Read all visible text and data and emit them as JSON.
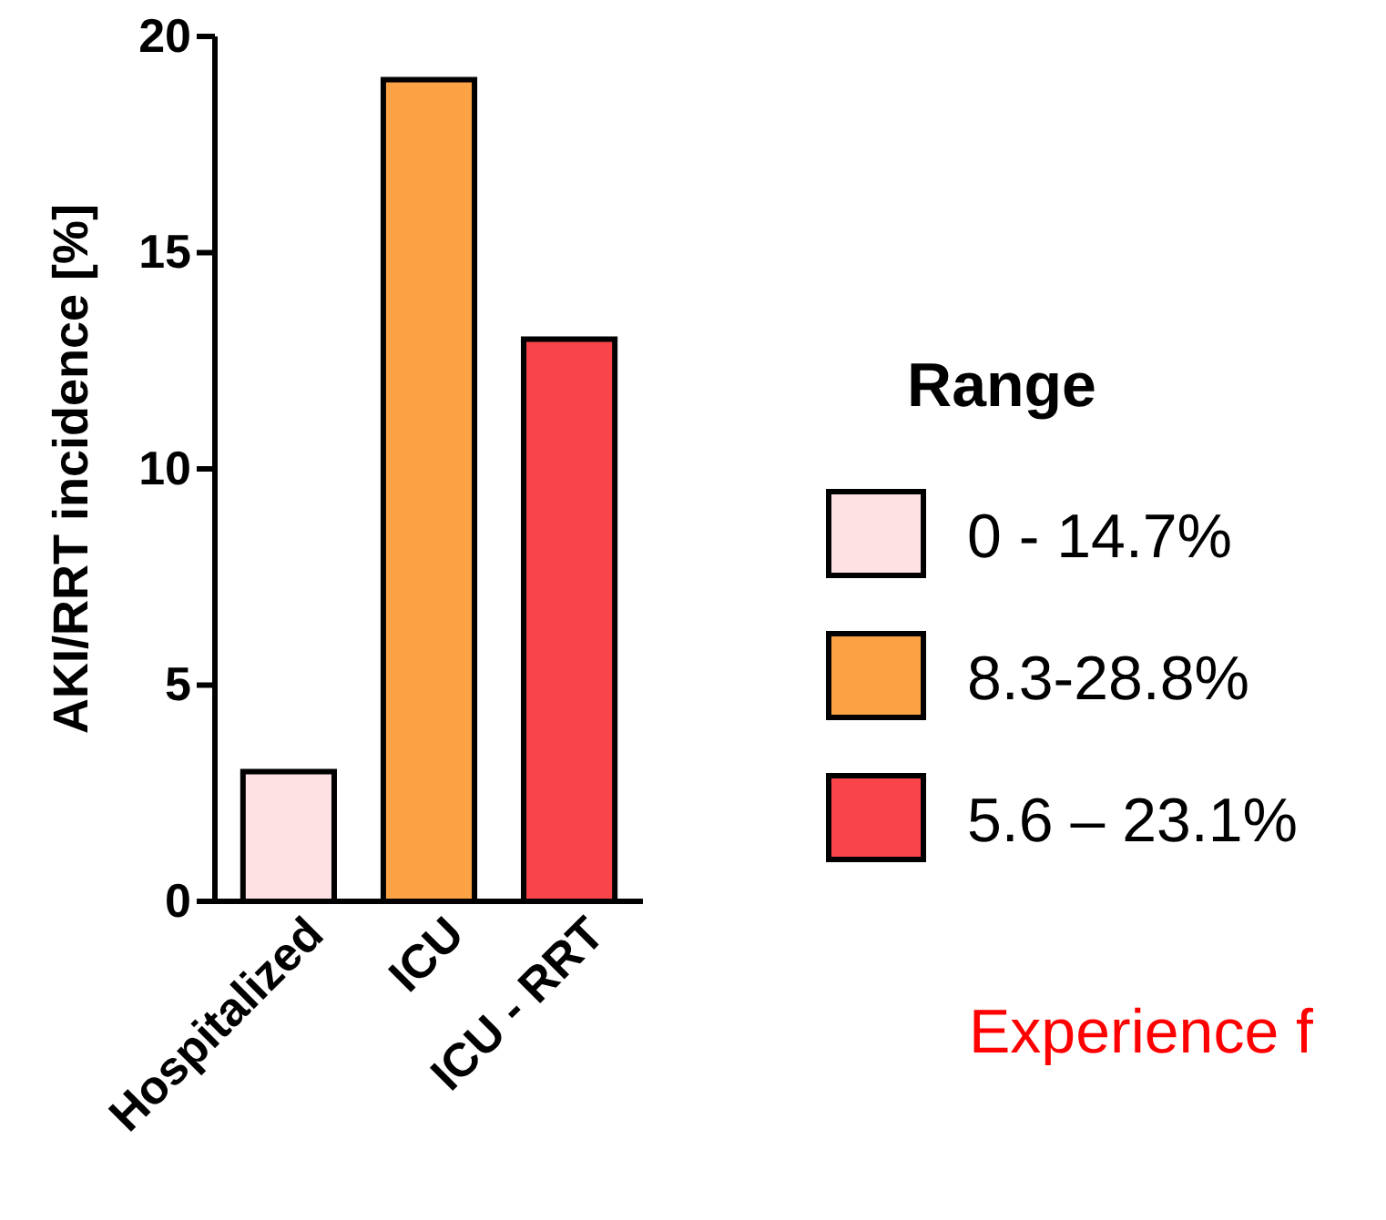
{
  "chart_data": {
    "type": "bar",
    "stacked": true,
    "ylabel": "AKI/RRT incidence [%]",
    "legend_title": "Range",
    "legend": "right",
    "categories": [
      "Hospitalized",
      "ICU",
      "ICU - RRT"
    ],
    "series": [
      {
        "name": "0 - 14.7%",
        "color": "#fde1e3",
        "values": [
          3,
          null,
          null
        ]
      },
      {
        "name": "8.3-28.8%",
        "color": "#fba244",
        "values": [
          null,
          19,
          null
        ]
      },
      {
        "name": "5.6 – 23.1%",
        "color": "#f94449",
        "values": [
          null,
          null,
          13
        ]
      }
    ],
    "ylim": [
      0,
      20
    ],
    "yticks": [
      0,
      5,
      10,
      15,
      20
    ],
    "grid": false,
    "annotations": [
      "Experience f"
    ]
  }
}
